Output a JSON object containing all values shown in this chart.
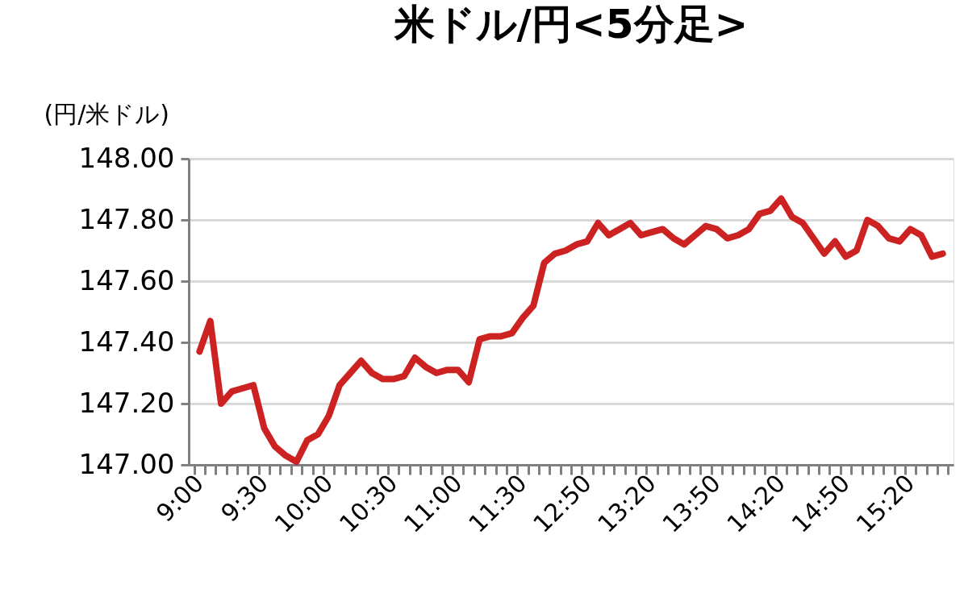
{
  "chart_data": {
    "type": "line",
    "title": "米ドル/円<5分足>",
    "ylabel": "(円/米ドル)",
    "categories": [
      "9:00",
      null,
      null,
      null,
      null,
      null,
      "9:30",
      null,
      null,
      null,
      null,
      null,
      "10:00",
      null,
      null,
      null,
      null,
      null,
      "10:30",
      null,
      null,
      null,
      null,
      null,
      "11:00",
      null,
      null,
      null,
      null,
      null,
      "11:30",
      null,
      null,
      null,
      null,
      null,
      "12:50",
      null,
      null,
      null,
      null,
      null,
      "13:20",
      null,
      null,
      null,
      null,
      null,
      "13:50",
      null,
      null,
      null,
      null,
      null,
      "14:20",
      null,
      null,
      null,
      null,
      null,
      "14:50",
      null,
      null,
      null,
      null,
      null,
      "15:20",
      null,
      null,
      null
    ],
    "series": [
      {
        "color": "#cc2222",
        "values": [
          147.37,
          147.47,
          147.2,
          147.24,
          147.25,
          147.26,
          147.12,
          147.06,
          147.03,
          147.01,
          147.08,
          147.1,
          147.16,
          147.26,
          147.3,
          147.34,
          147.3,
          147.28,
          147.28,
          147.29,
          147.35,
          147.32,
          147.3,
          147.31,
          147.31,
          147.27,
          147.41,
          147.42,
          147.42,
          147.43,
          147.48,
          147.52,
          147.66,
          147.69,
          147.7,
          147.72,
          147.73,
          147.79,
          147.75,
          147.77,
          147.79,
          147.75,
          147.76,
          147.77,
          147.74,
          147.72,
          147.75,
          147.78,
          147.77,
          147.74,
          147.75,
          147.77,
          147.82,
          147.83,
          147.87,
          147.81,
          147.79,
          147.74,
          147.69,
          147.73,
          147.68,
          147.7,
          147.8,
          147.78,
          147.74,
          147.73,
          147.77,
          147.75,
          147.68,
          147.69
        ]
      }
    ],
    "ylim": [
      147.0,
      148.0
    ],
    "yticks": [
      {
        "value": 147.0,
        "label": "147.00"
      },
      {
        "value": 147.2,
        "label": "147.20"
      },
      {
        "value": 147.4,
        "label": "147.40"
      },
      {
        "value": 147.6,
        "label": "147.60"
      },
      {
        "value": 147.8,
        "label": "147.80"
      },
      {
        "value": 148.0,
        "label": "148.00"
      }
    ],
    "grid": "y",
    "marker": "none",
    "line_style": "solid"
  }
}
